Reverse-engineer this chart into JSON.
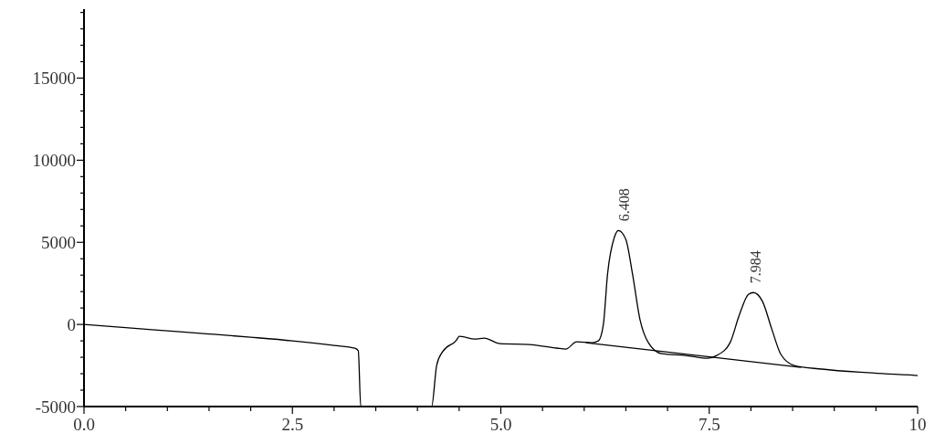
{
  "chart_data": {
    "type": "line",
    "xlim": [
      0,
      10
    ],
    "ylim": [
      -5000,
      19200
    ],
    "xticks": [
      {
        "value": 0,
        "label": "0.0"
      },
      {
        "value": 0.5,
        "label": null
      },
      {
        "value": 1,
        "label": null
      },
      {
        "value": 1.5,
        "label": null
      },
      {
        "value": 2,
        "label": null
      },
      {
        "value": 2.5,
        "label": "2.5"
      },
      {
        "value": 3,
        "label": null
      },
      {
        "value": 3.5,
        "label": null
      },
      {
        "value": 4,
        "label": null
      },
      {
        "value": 4.5,
        "label": null
      },
      {
        "value": 5,
        "label": "5.0"
      },
      {
        "value": 5.5,
        "label": null
      },
      {
        "value": 6,
        "label": null
      },
      {
        "value": 6.5,
        "label": null
      },
      {
        "value": 7,
        "label": null
      },
      {
        "value": 7.5,
        "label": "7.5"
      },
      {
        "value": 8,
        "label": null
      },
      {
        "value": 8.5,
        "label": null
      },
      {
        "value": 9,
        "label": null
      },
      {
        "value": 9.5,
        "label": null
      },
      {
        "value": 10,
        "label": "10"
      }
    ],
    "yticks": [
      -5000,
      {
        "value": -4000,
        "label": null
      },
      {
        "value": -3000,
        "label": null
      },
      {
        "value": -2000,
        "label": null
      },
      {
        "value": -1000,
        "label": null
      },
      0,
      {
        "value": 1000,
        "label": null
      },
      {
        "value": 2000,
        "label": null
      },
      {
        "value": 3000,
        "label": null
      },
      {
        "value": 4000,
        "label": null
      },
      5000,
      {
        "value": 6000,
        "label": null
      },
      {
        "value": 7000,
        "label": null
      },
      {
        "value": 8000,
        "label": null
      },
      {
        "value": 9000,
        "label": null
      },
      10000,
      {
        "value": 11000,
        "label": null
      },
      {
        "value": 12000,
        "label": null
      },
      {
        "value": 13000,
        "label": null
      },
      {
        "value": 14000,
        "label": null
      },
      15000,
      {
        "value": 16000,
        "label": null
      },
      {
        "value": 17000,
        "label": null
      },
      {
        "value": 18000,
        "label": null
      },
      {
        "value": 19000,
        "label": null
      }
    ],
    "grid": false,
    "line_style": "solid",
    "series": [
      {
        "color": "#000000",
        "x": [
          0,
          0.5,
          1,
          1.5,
          2,
          2.5,
          3,
          3.25,
          3.29,
          3.32,
          4.17,
          4.23,
          4.3,
          4.47,
          4.5,
          4.69,
          4.8,
          4.99,
          5.34,
          5.67,
          5.78,
          5.91,
          6.09,
          6.17,
          6.23,
          6.28,
          6.36,
          6.41,
          6.5,
          6.58,
          6.67,
          6.77,
          6.93,
          7.21,
          7.48,
          7.59,
          7.75,
          7.86,
          7.97,
          8.03,
          8.14,
          8.25,
          8.36,
          8.52,
          8.85,
          9.4,
          10
        ],
        "values": [
          0,
          -200,
          -390,
          -580,
          -780,
          -1000,
          -1280,
          -1450,
          -1600,
          -5000,
          -5000,
          -2500,
          -1670,
          -940,
          -720,
          -890,
          -830,
          -1170,
          -1220,
          -1440,
          -1500,
          -1060,
          -1110,
          -1000,
          0,
          3060,
          5280,
          5720,
          5170,
          3060,
          280,
          -1110,
          -1780,
          -1890,
          -2060,
          -1890,
          -1110,
          560,
          1830,
          1940,
          1390,
          -280,
          -1830,
          -2500,
          -2720,
          -2940,
          -3110
        ]
      },
      {
        "color": "#000000",
        "x": [
          6.02,
          8.6
        ],
        "values": [
          -1110,
          -2610
        ]
      }
    ],
    "annotations": [
      {
        "text": "6.408",
        "x": 6.408,
        "y": 5720
      },
      {
        "text": "7.984",
        "x": 7.984,
        "y": 1940
      }
    ]
  }
}
